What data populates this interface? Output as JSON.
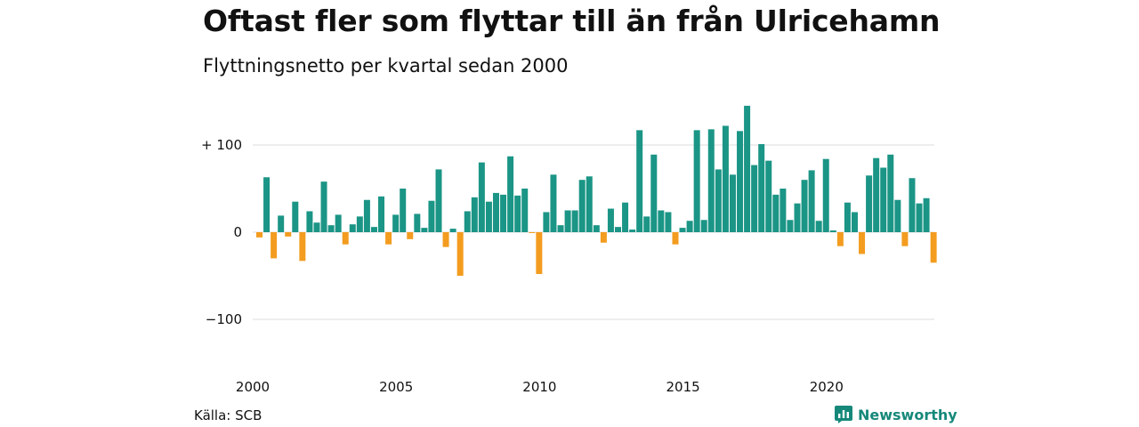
{
  "header": {
    "title": "Oftast fler som flyttar till än från Ulricehamn",
    "subtitle": "Flyttningsnetto per kvartal sedan 2000"
  },
  "footer": {
    "source": "Källa: SCB",
    "brand": "Newsworthy",
    "brand_icon": "newsworthy-logo-icon"
  },
  "colors": {
    "positive": "#1b9586",
    "negative": "#f39c1f",
    "grid": "#dddddd",
    "brand": "#16887a"
  },
  "chart_data": {
    "type": "bar",
    "title": "Oftast fler som flyttar till än från Ulricehamn",
    "subtitle": "Flyttningsnetto per kvartal sedan 2000",
    "x_start_year": 2000,
    "periods_per_year": 4,
    "x_ticks": [
      "2000",
      "2005",
      "2010",
      "2015",
      "2020"
    ],
    "y_ticks": [
      {
        "value": 100,
        "label": "+ 100"
      },
      {
        "value": 0,
        "label": "0"
      },
      {
        "value": -100,
        "label": "−100"
      }
    ],
    "ylim": [
      -140,
      150
    ],
    "grid": true,
    "legend": "none",
    "values": [
      -6,
      63,
      -30,
      19,
      -5,
      35,
      -33,
      24,
      11,
      58,
      8,
      20,
      -14,
      9,
      18,
      37,
      6,
      41,
      -14,
      20,
      50,
      -8,
      21,
      5,
      36,
      72,
      -17,
      4,
      -50,
      24,
      40,
      80,
      35,
      45,
      43,
      87,
      42,
      50,
      -1,
      -48,
      23,
      66,
      8,
      25,
      25,
      60,
      64,
      8,
      -12,
      27,
      6,
      34,
      3,
      117,
      18,
      89,
      25,
      23,
      -14,
      5,
      13,
      117,
      14,
      118,
      72,
      122,
      66,
      116,
      145,
      77,
      101,
      82,
      43,
      50,
      14,
      33,
      60,
      71,
      13,
      84,
      2,
      -16,
      34,
      23,
      -25,
      65,
      85,
      74,
      89,
      37,
      -16,
      62,
      33,
      39,
      -35
    ]
  }
}
